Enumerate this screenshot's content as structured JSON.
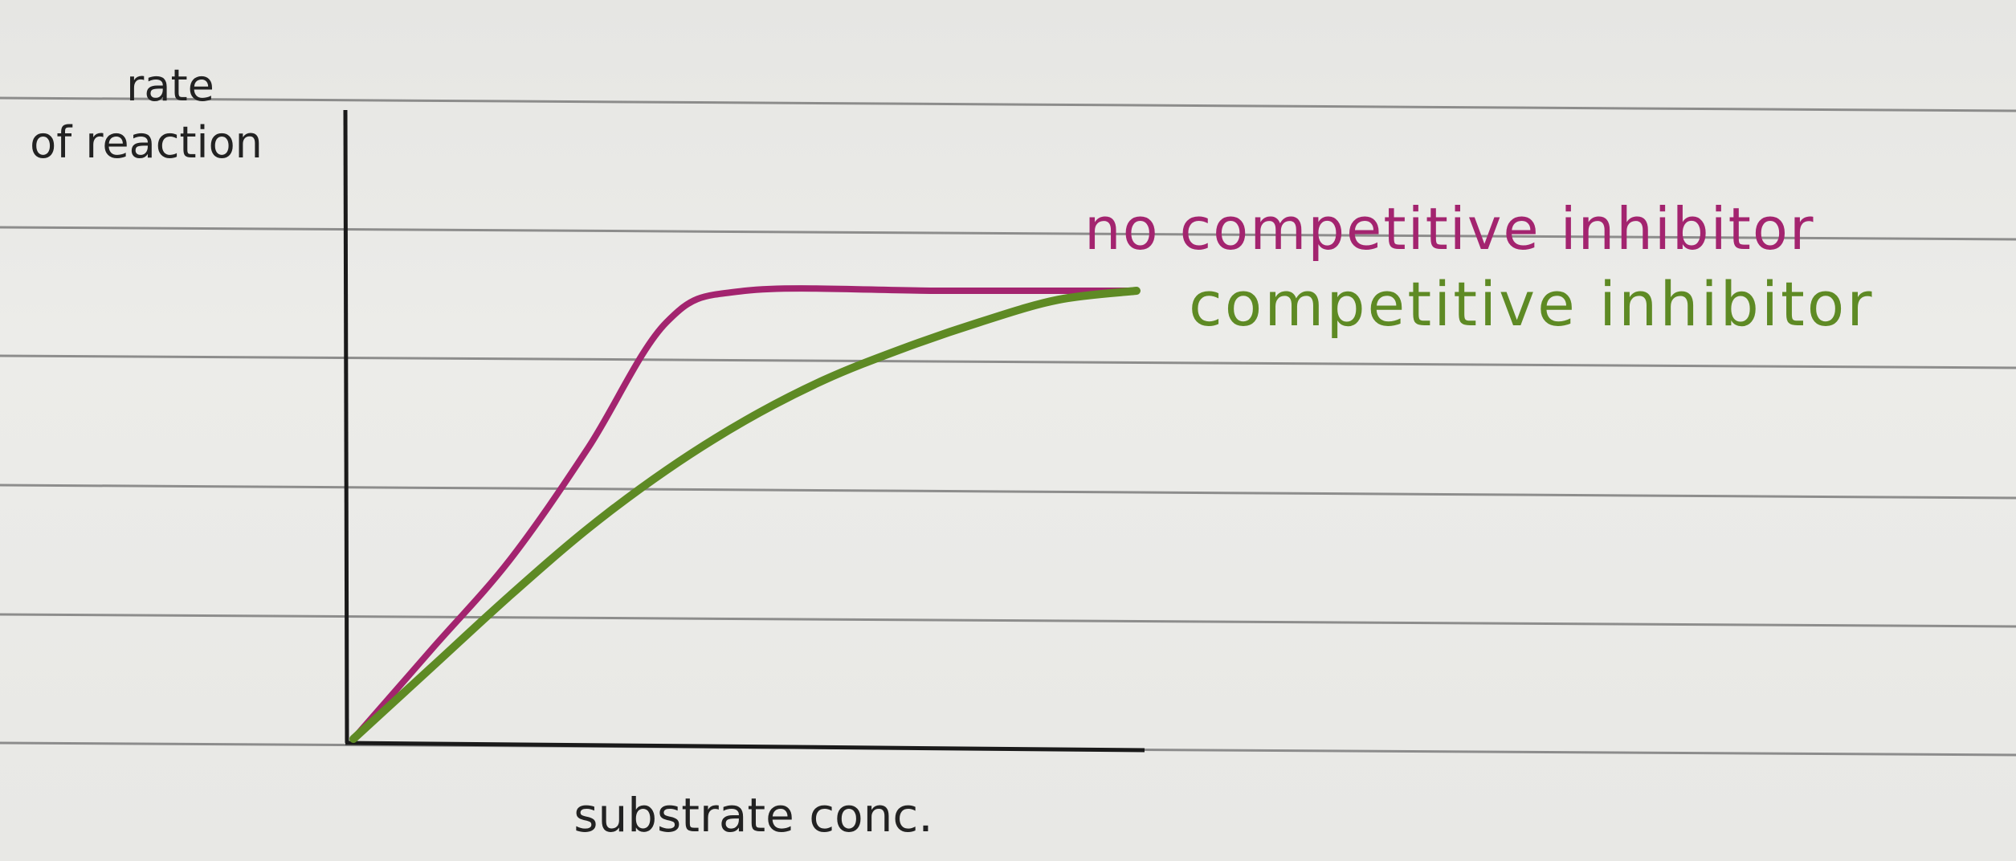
{
  "chart_data": {
    "type": "line",
    "xlabel": "substrate conc.",
    "ylabel": "rate of reaction",
    "ylabel_lines": [
      "rate",
      "of reaction"
    ],
    "grid": false,
    "series": [
      {
        "name": "no competitive inhibitor",
        "color": "#a3246f",
        "points": [
          [
            0,
            0
          ],
          [
            0.1,
            0.2
          ],
          [
            0.2,
            0.4
          ],
          [
            0.3,
            0.65
          ],
          [
            0.4,
            0.93
          ],
          [
            0.5,
            1.0
          ],
          [
            0.75,
            1.0
          ],
          [
            1.0,
            1.0
          ]
        ]
      },
      {
        "name": "competitive inhibitor",
        "color": "#5e8a24",
        "points": [
          [
            0,
            0
          ],
          [
            0.1,
            0.16
          ],
          [
            0.2,
            0.32
          ],
          [
            0.3,
            0.47
          ],
          [
            0.4,
            0.6
          ],
          [
            0.5,
            0.71
          ],
          [
            0.6,
            0.8
          ],
          [
            0.7,
            0.87
          ],
          [
            0.8,
            0.93
          ],
          [
            0.9,
            0.98
          ],
          [
            1.0,
            1.0
          ]
        ]
      }
    ],
    "legend": "right, next to curve ends"
  }
}
